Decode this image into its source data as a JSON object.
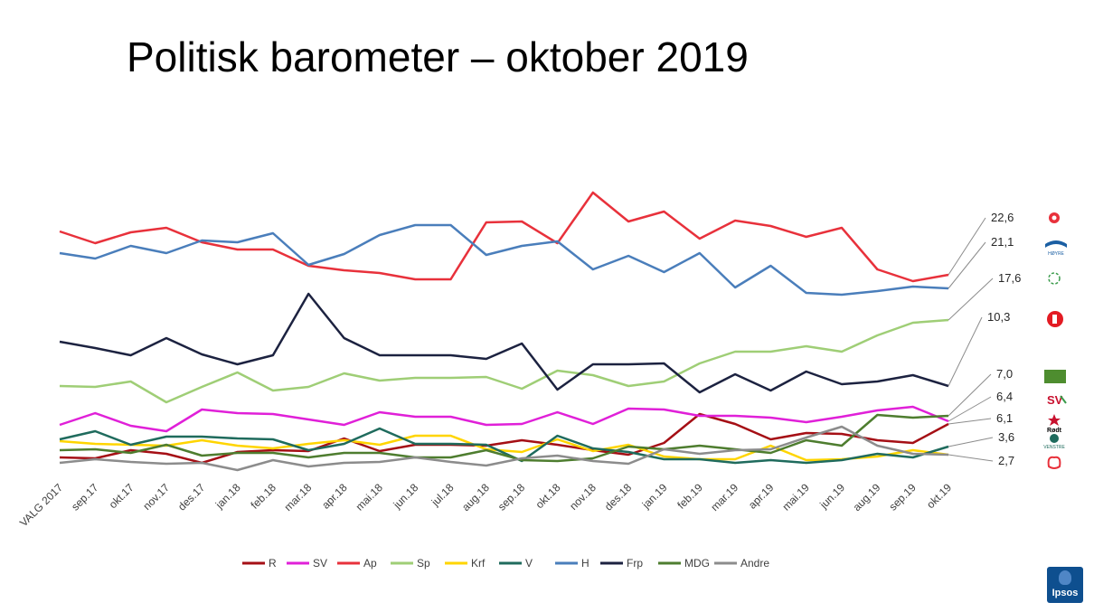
{
  "title": "Politisk barometer – oktober 2019",
  "chart_data": {
    "type": "line",
    "title": "Politisk barometer – oktober 2019",
    "xlabel": "",
    "ylabel": "",
    "ylim": [
      0,
      40
    ],
    "grid": false,
    "legend": "bottom",
    "categories": [
      "VALG 2017",
      "sep.17",
      "okt.17",
      "nov.17",
      "des.17",
      "jan.18",
      "feb.18",
      "mar.18",
      "apr.18",
      "mai.18",
      "jun.18",
      "jul.18",
      "aug.18",
      "sep.18",
      "okt.18",
      "nov.18",
      "des.18",
      "jan.19",
      "feb.19",
      "mar.19",
      "apr.19",
      "mai.19",
      "jun.19",
      "aug.19",
      "sep.19",
      "okt.19"
    ],
    "series": [
      {
        "name": "R",
        "color": "#a50f15",
        "values": [
          2.4,
          2.3,
          3.2,
          2.8,
          1.8,
          3.0,
          3.2,
          3.1,
          4.5,
          3.1,
          3.8,
          3.8,
          3.7,
          4.3,
          3.8,
          3.2,
          2.7,
          4.0,
          7.2,
          6.1,
          4.4,
          5.1,
          5.0,
          4.3,
          4.0,
          6.1
        ]
      },
      {
        "name": "SV",
        "color": "#e020d8",
        "values": [
          6.0,
          7.3,
          5.9,
          5.3,
          7.7,
          7.3,
          7.2,
          6.6,
          6.0,
          7.4,
          6.9,
          6.9,
          6.0,
          6.1,
          7.4,
          6.1,
          7.8,
          7.7,
          7.0,
          7.0,
          6.8,
          6.3,
          6.9,
          7.6,
          8.0,
          6.4
        ]
      },
      {
        "name": "Ap",
        "color": "#e8313b",
        "values": [
          27.4,
          26.1,
          27.3,
          27.8,
          26.2,
          25.4,
          25.4,
          23.6,
          23.1,
          22.8,
          22.1,
          22.1,
          28.4,
          28.5,
          26.1,
          31.7,
          28.5,
          29.6,
          26.6,
          28.6,
          28.0,
          26.8,
          27.8,
          23.2,
          21.9,
          22.6
        ]
      },
      {
        "name": "Sp",
        "color": "#9fce76",
        "values": [
          10.3,
          10.2,
          10.8,
          8.5,
          10.2,
          11.8,
          9.8,
          10.2,
          11.7,
          10.9,
          11.2,
          11.2,
          11.3,
          10.0,
          12.0,
          11.5,
          10.3,
          10.8,
          12.8,
          14.1,
          14.1,
          14.7,
          14.1,
          15.9,
          17.3,
          17.6
        ]
      },
      {
        "name": "Krf",
        "color": "#ffd500",
        "values": [
          4.2,
          3.9,
          3.8,
          3.7,
          4.3,
          3.7,
          3.4,
          3.9,
          4.3,
          3.8,
          4.8,
          4.8,
          3.3,
          3.0,
          4.4,
          3.1,
          3.8,
          2.5,
          2.2,
          2.2,
          3.7,
          2.1,
          2.2,
          2.5,
          3.2,
          2.7
        ]
      },
      {
        "name": "V",
        "color": "#1f6b5d",
        "values": [
          4.4,
          5.3,
          3.8,
          4.7,
          4.7,
          4.5,
          4.4,
          3.2,
          3.9,
          5.6,
          3.9,
          3.9,
          3.8,
          2.0,
          4.8,
          3.4,
          3.0,
          2.2,
          2.2,
          1.8,
          2.1,
          1.8,
          2.1,
          2.8,
          2.4,
          3.6
        ]
      },
      {
        "name": "H",
        "color": "#4a7ebb",
        "values": [
          25.0,
          24.4,
          25.8,
          25.0,
          26.4,
          26.2,
          27.2,
          23.7,
          24.9,
          27.0,
          28.1,
          28.1,
          24.8,
          25.8,
          26.3,
          23.2,
          24.7,
          22.9,
          25.0,
          21.2,
          23.6,
          20.6,
          20.4,
          20.8,
          21.3,
          21.1
        ]
      },
      {
        "name": "Frp",
        "color": "#1c2240",
        "values": [
          15.2,
          14.5,
          13.7,
          15.6,
          13.8,
          12.7,
          13.7,
          20.5,
          15.6,
          13.7,
          13.7,
          13.7,
          13.3,
          15.0,
          9.9,
          12.7,
          12.7,
          12.8,
          9.6,
          11.6,
          9.8,
          11.9,
          10.5,
          10.8,
          11.5,
          10.3
        ]
      },
      {
        "name": "MDG",
        "color": "#4e7d2f",
        "values": [
          3.2,
          3.3,
          2.9,
          3.8,
          2.6,
          2.9,
          2.9,
          2.4,
          2.9,
          2.9,
          2.4,
          2.4,
          3.2,
          2.1,
          2.0,
          2.3,
          3.6,
          3.3,
          3.7,
          3.3,
          2.9,
          4.3,
          3.7,
          7.1,
          6.8,
          7.0
        ]
      },
      {
        "name": "Andre",
        "color": "#8c8c8c",
        "values": [
          1.8,
          2.2,
          1.9,
          1.7,
          1.8,
          1.0,
          2.1,
          1.4,
          1.8,
          1.9,
          2.4,
          1.9,
          1.5,
          2.3,
          2.6,
          2.0,
          1.7,
          3.3,
          2.8,
          3.2,
          3.3,
          4.6,
          5.8,
          3.7,
          2.8,
          2.7
        ]
      }
    ],
    "end_labels": [
      {
        "series": "Ap",
        "text": "22,6",
        "logo": "ap-rose"
      },
      {
        "series": "H",
        "text": "21,1",
        "logo": "hoyre-logo"
      },
      {
        "series": "Sp",
        "text": "17,6",
        "logo": "sp-logo"
      },
      {
        "series": "Frp",
        "text": "10,3",
        "logo": "frp-logo"
      },
      {
        "series": "MDG",
        "text": "7,0",
        "logo": "mdg-logo"
      },
      {
        "series": "SV",
        "text": "6,4",
        "logo": "sv-logo"
      },
      {
        "series": "R",
        "text": "6,1",
        "logo": "rodt-logo"
      },
      {
        "series": "V",
        "text": "3,6",
        "logo": "venstre-logo"
      },
      {
        "series": "Krf",
        "text": "2,7",
        "logo": "krf-logo"
      }
    ],
    "logo_text": {
      "hoyre": "HØYRE",
      "rodt": "Rødt",
      "venstre": "VENSTRE",
      "sv": "SV"
    }
  },
  "brand": {
    "name": "Ipsos",
    "color": "#0e4f8f"
  }
}
